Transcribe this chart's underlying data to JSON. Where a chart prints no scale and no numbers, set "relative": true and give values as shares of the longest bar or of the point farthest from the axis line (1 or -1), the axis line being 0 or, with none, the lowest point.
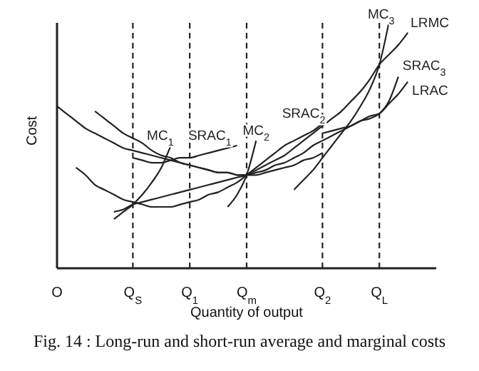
{
  "chart_data": {
    "type": "line",
    "relative": true,
    "marker": "none",
    "line_style": "solid",
    "xlabel": "Quantity of output",
    "ylabel": "Cost",
    "annotations": [
      "Fig. 14 : Long-run and short-run average and marginal costs"
    ],
    "categories": [
      "O",
      null,
      null,
      null,
      null,
      null,
      null,
      null,
      "Q$_{S}$",
      null,
      null,
      null,
      null,
      null,
      "Q$_{1}$",
      null,
      null,
      null,
      null,
      null,
      "Q$_{m}$",
      null,
      null,
      null,
      null,
      null,
      null,
      null,
      "Q$_{2}$",
      null,
      null,
      null,
      null,
      null,
      "Q$_{L}$",
      null,
      null,
      null,
      null,
      null,
      null
    ],
    "ref_lines": [
      {
        "axis": "x",
        "value": "Q$_{S}$",
        "line_style": "dashed",
        "color": "#222222"
      },
      {
        "axis": "x",
        "value": "Q$_{1}$",
        "line_style": "dashed",
        "color": "#222222"
      },
      {
        "axis": "x",
        "value": "Q$_{m}$",
        "line_style": "dashed",
        "color": "#222222"
      },
      {
        "axis": "x",
        "value": "Q$_{2}$",
        "line_style": "dashed",
        "color": "#222222"
      },
      {
        "axis": "x",
        "value": "Q$_{L}$",
        "line_style": "dashed",
        "color": "#222222"
      }
    ],
    "series": [
      {
        "color": "#222222",
        "values": [
          null,
          null,
          0.41,
          0.38,
          0.34,
          0.32,
          0.3,
          0.28,
          0.27,
          0.26,
          0.25,
          0.25,
          0.25,
          0.26,
          0.27,
          0.28,
          0.3,
          0.31,
          0.33,
          0.35,
          0.38,
          null,
          null,
          null,
          null,
          null,
          null,
          null,
          null,
          null,
          null,
          null,
          null,
          null,
          null,
          null,
          null,
          null,
          null,
          null,
          null
        ]
      },
      {
        "name": "MC$_{1}$",
        "color": "#222222",
        "values": [
          null,
          null,
          null,
          null,
          null,
          null,
          0.2,
          0.23,
          0.26,
          0.3,
          0.35,
          0.41,
          0.5,
          null,
          null,
          null,
          null,
          null,
          null,
          null,
          null,
          null,
          null,
          null,
          null,
          null,
          null,
          null,
          null,
          null,
          null,
          null,
          null,
          null,
          null,
          null,
          null,
          null,
          null,
          null,
          null
        ]
      },
      {
        "name": "SRAC$_{1}$",
        "color": "#222222",
        "values": [
          null,
          null,
          null,
          null,
          null,
          null,
          null,
          null,
          0.45,
          0.44,
          0.43,
          0.43,
          0.44,
          0.45,
          0.45,
          0.46,
          0.47,
          0.48,
          0.49,
          0.5,
          null,
          null,
          null,
          null,
          null,
          null,
          null,
          null,
          null,
          null,
          null,
          null,
          null,
          null,
          null,
          null,
          null,
          null,
          null,
          null,
          null
        ]
      },
      {
        "color": "#222222",
        "values": [
          null,
          null,
          null,
          null,
          0.64,
          0.61,
          0.58,
          0.55,
          0.53,
          0.51,
          0.48,
          0.46,
          0.45,
          0.43,
          0.42,
          0.41,
          0.4,
          0.39,
          0.39,
          0.38,
          0.38,
          0.38,
          0.39,
          0.4,
          0.41,
          0.42,
          0.44,
          0.45,
          0.47,
          null,
          null,
          null,
          null,
          null,
          null,
          null,
          null,
          null,
          null,
          null,
          null
        ]
      },
      {
        "name": "MC$_{2}$",
        "color": "#222222",
        "values": [
          null,
          null,
          null,
          null,
          null,
          null,
          null,
          null,
          null,
          null,
          null,
          null,
          null,
          null,
          null,
          null,
          null,
          null,
          0.25,
          0.3,
          0.38,
          0.52,
          null,
          null,
          null,
          null,
          null,
          null,
          null,
          null,
          null,
          null,
          null,
          null,
          null,
          null,
          null,
          null,
          null,
          null,
          null
        ]
      },
      {
        "name": "SRAC$_{2}$",
        "color": "#222222",
        "values": [
          null,
          null,
          null,
          null,
          null,
          null,
          null,
          null,
          null,
          null,
          null,
          null,
          null,
          null,
          null,
          null,
          null,
          null,
          null,
          null,
          0.38,
          0.41,
          0.44,
          0.47,
          0.5,
          0.52,
          0.54,
          0.56,
          0.59,
          null,
          null,
          null,
          null,
          null,
          null,
          null,
          null,
          null,
          null,
          null,
          null
        ]
      },
      {
        "name": "MC$_{3}$",
        "color": "#222222",
        "values": [
          null,
          null,
          null,
          null,
          null,
          null,
          null,
          null,
          null,
          null,
          null,
          null,
          null,
          null,
          null,
          null,
          null,
          null,
          null,
          null,
          null,
          null,
          null,
          null,
          null,
          0.32,
          0.36,
          0.4,
          0.45,
          0.5,
          0.55,
          0.6,
          0.66,
          0.73,
          0.83,
          1,
          null,
          null,
          null,
          null,
          null
        ]
      },
      {
        "name": "LRMC",
        "color": "#222222",
        "values": [
          null,
          null,
          null,
          null,
          null,
          null,
          0.23,
          0.24,
          0.26,
          0.27,
          0.28,
          0.29,
          0.3,
          0.31,
          0.32,
          0.33,
          0.34,
          0.35,
          0.36,
          0.37,
          0.38,
          0.4,
          0.42,
          0.44,
          0.46,
          0.49,
          0.52,
          0.55,
          0.58,
          0.61,
          0.64,
          0.68,
          0.72,
          0.77,
          0.83,
          0.87,
          0.91,
          0.96,
          null,
          null,
          null
        ]
      },
      {
        "name": "SRAC$_{3}$",
        "color": "#222222",
        "values": [
          null,
          null,
          null,
          null,
          null,
          null,
          null,
          null,
          null,
          null,
          null,
          null,
          null,
          null,
          null,
          null,
          null,
          null,
          null,
          null,
          null,
          null,
          null,
          null,
          null,
          null,
          null,
          null,
          0.55,
          0.56,
          0.57,
          0.58,
          0.6,
          0.61,
          0.63,
          0.68,
          0.78,
          null,
          null,
          null,
          null
        ]
      },
      {
        "name": "LRAC",
        "color": "#222222",
        "values": [
          0.66,
          0.63,
          0.6,
          0.57,
          0.55,
          0.53,
          0.51,
          0.49,
          0.48,
          0.47,
          0.46,
          0.45,
          0.44,
          0.43,
          0.42,
          0.41,
          0.4,
          0.39,
          0.39,
          0.38,
          0.38,
          0.39,
          0.4,
          0.42,
          0.43,
          0.45,
          0.47,
          0.5,
          0.52,
          0.54,
          0.56,
          0.58,
          0.6,
          0.62,
          0.63,
          0.67,
          0.71,
          0.76,
          null,
          null,
          null
        ]
      }
    ]
  }
}
